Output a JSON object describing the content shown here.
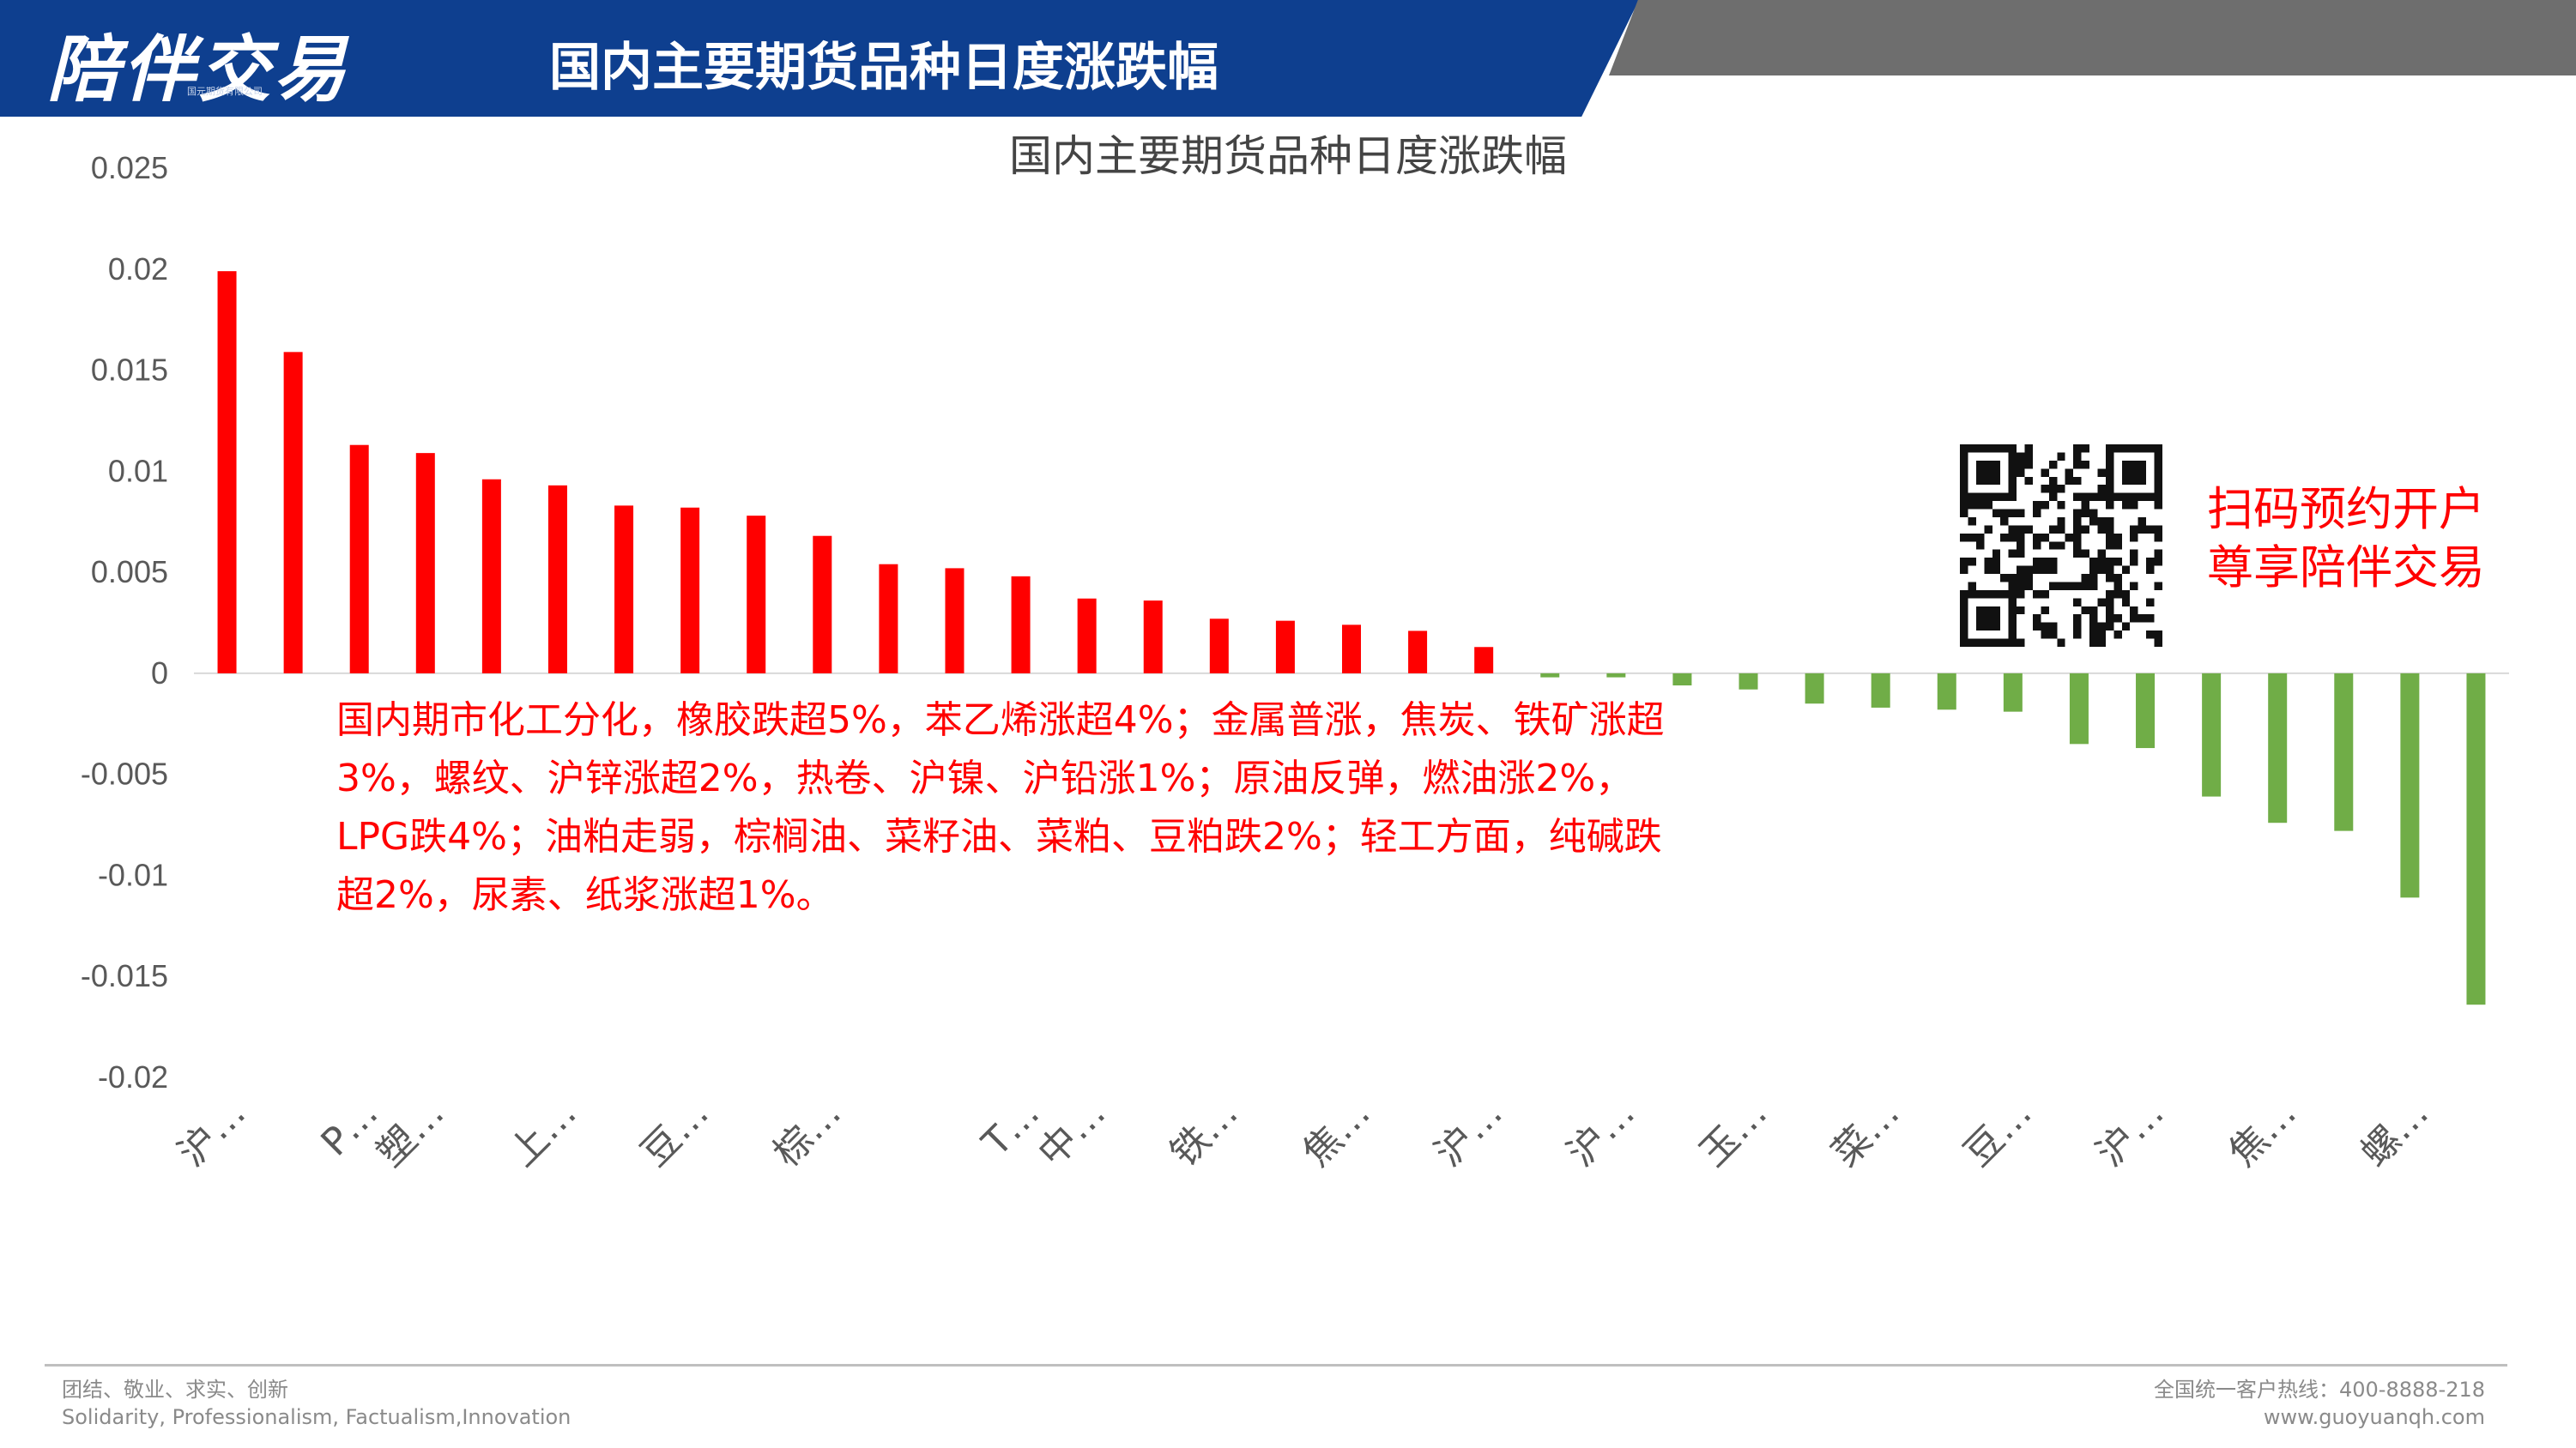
{
  "header": {
    "logo_text": "陪伴交易",
    "logo_subtext": "国元期货有限公司",
    "title": "国内主要期货品种日度涨跌幅"
  },
  "chart_data": {
    "type": "bar",
    "title": "国内主要期货品种日度涨跌幅",
    "xlabel": "",
    "ylabel": "",
    "ylim": [
      -0.02,
      0.025
    ],
    "yticks": [
      -0.02,
      -0.015,
      -0.01,
      -0.005,
      0,
      0.005,
      0.01,
      0.015,
      0.02,
      0.025
    ],
    "ytick_labels": [
      "-0.02",
      "-0.015",
      "-0.01",
      "-0.005",
      "0",
      "0.005",
      "0.01",
      "0.015",
      "0.02",
      "0.025"
    ],
    "grid": false,
    "legend": "none",
    "positive_color": "#ff0000",
    "negative_color": "#70ad47",
    "category_labels": [
      {
        "index": 0,
        "label": "沪…"
      },
      {
        "index": 2,
        "label": "P…"
      },
      {
        "index": 3,
        "label": "塑…"
      },
      {
        "index": 5,
        "label": "上…"
      },
      {
        "index": 7,
        "label": "豆…"
      },
      {
        "index": 9,
        "label": "棕…"
      },
      {
        "index": 12,
        "label": "T…"
      },
      {
        "index": 13,
        "label": "中…"
      },
      {
        "index": 15,
        "label": "铁…"
      },
      {
        "index": 17,
        "label": "焦…"
      },
      {
        "index": 19,
        "label": "沪…"
      },
      {
        "index": 21,
        "label": "沪…"
      },
      {
        "index": 23,
        "label": "玉…"
      },
      {
        "index": 25,
        "label": "菜…"
      },
      {
        "index": 27,
        "label": "豆…"
      },
      {
        "index": 29,
        "label": "沪…"
      },
      {
        "index": 31,
        "label": "焦…"
      },
      {
        "index": 33,
        "label": "螺…"
      }
    ],
    "values": [
      0.0199,
      0.0159,
      0.0113,
      0.0109,
      0.0096,
      0.0093,
      0.0083,
      0.0082,
      0.0078,
      0.0068,
      0.0054,
      0.0052,
      0.0048,
      0.0037,
      0.0036,
      0.0027,
      0.0026,
      0.0024,
      0.0021,
      0.0013,
      -0.0002,
      -0.0002,
      -0.0006,
      -0.0008,
      -0.0015,
      -0.0017,
      -0.0018,
      -0.0019,
      -0.0035,
      -0.0037,
      -0.0061,
      -0.0074,
      -0.0078,
      -0.0111,
      -0.0164
    ]
  },
  "annotation": {
    "lines": [
      "国内期市化工分化，橡胶跌超5%，苯乙烯涨超4%；金属普涨，焦炭、铁矿涨超",
      "3%，螺纹、沪锌涨超2%，热卷、沪镍、沪铅涨1%；原油反弹，燃油涨2%，",
      "LPG跌4%；油粕走弱，棕榈油、菜籽油、菜粕、豆粕跌2%；轻工方面，纯碱跌",
      "超2%，尿素、纸浆涨超1%。"
    ]
  },
  "promo": {
    "line1": "扫码预约开户",
    "line2": "尊享陪伴交易"
  },
  "footer": {
    "slogan_cn": "团结、敬业、求实、创新",
    "slogan_en": "Solidarity, Professionalism, Factualism,Innovation",
    "hotline": "全国统一客户热线：400-8888-218",
    "website": "www.guoyuanqh.com"
  }
}
